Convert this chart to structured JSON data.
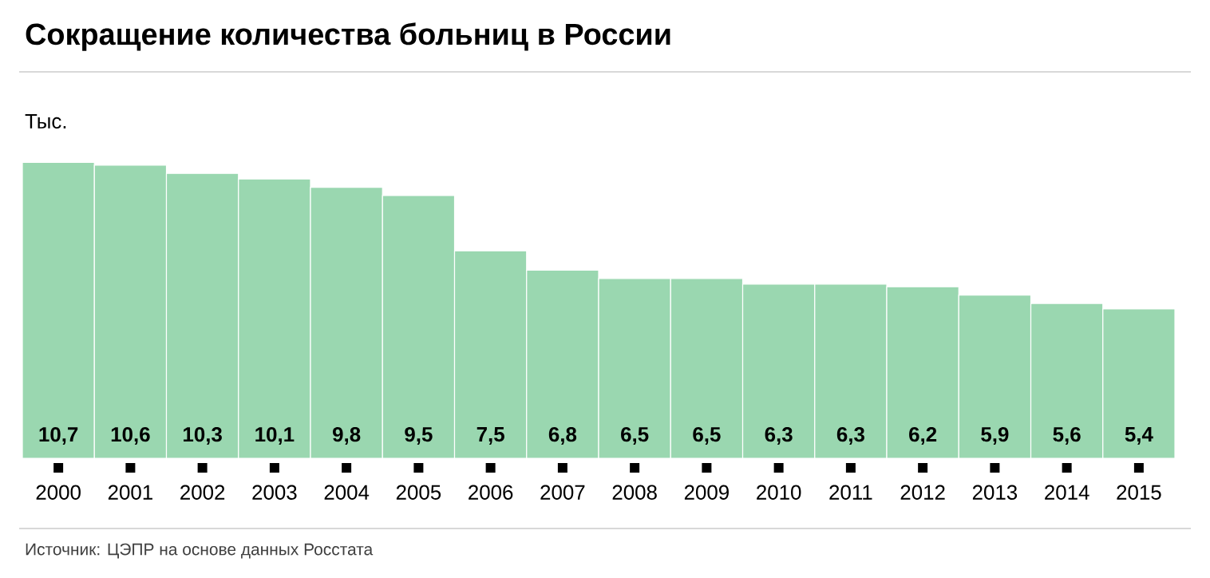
{
  "chart_data": {
    "type": "bar",
    "title": "Сокращение количества больниц в России",
    "ylabel": "Тыс.",
    "categories": [
      "2000",
      "2001",
      "2002",
      "2003",
      "2004",
      "2005",
      "2006",
      "2007",
      "2008",
      "2009",
      "2010",
      "2011",
      "2012",
      "2013",
      "2014",
      "2015"
    ],
    "values": [
      10.7,
      10.6,
      10.3,
      10.1,
      9.8,
      9.5,
      7.5,
      6.8,
      6.5,
      6.5,
      6.3,
      6.3,
      6.2,
      5.9,
      5.6,
      5.4
    ],
    "value_labels": [
      "10,7",
      "10,6",
      "10,3",
      "10,1",
      "9,8",
      "9,5",
      "7,5",
      "6,8",
      "6,5",
      "6,5",
      "6,3",
      "6,3",
      "6,2",
      "5,9",
      "5,6",
      "5,4"
    ],
    "color": "#9ad7b0",
    "annotations": [
      "Источник: ЦЭПР на основе данных Росстата"
    ]
  }
}
